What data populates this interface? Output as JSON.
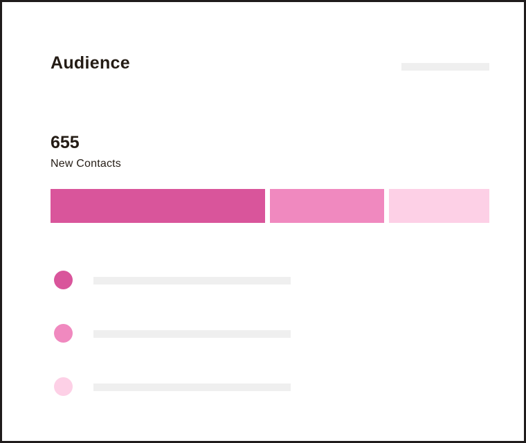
{
  "card": {
    "title": "Audience"
  },
  "metric": {
    "value": "655",
    "label": "New Contacts"
  },
  "segments": [
    {
      "color": "#d9559b",
      "share": 0.49
    },
    {
      "color": "#f089bf",
      "share": 0.26
    },
    {
      "color": "#fdd0e6",
      "share": 0.23
    }
  ],
  "legend": [
    {
      "color": "#d9559b"
    },
    {
      "color": "#f089bf"
    },
    {
      "color": "#fdd0e6"
    }
  ]
}
